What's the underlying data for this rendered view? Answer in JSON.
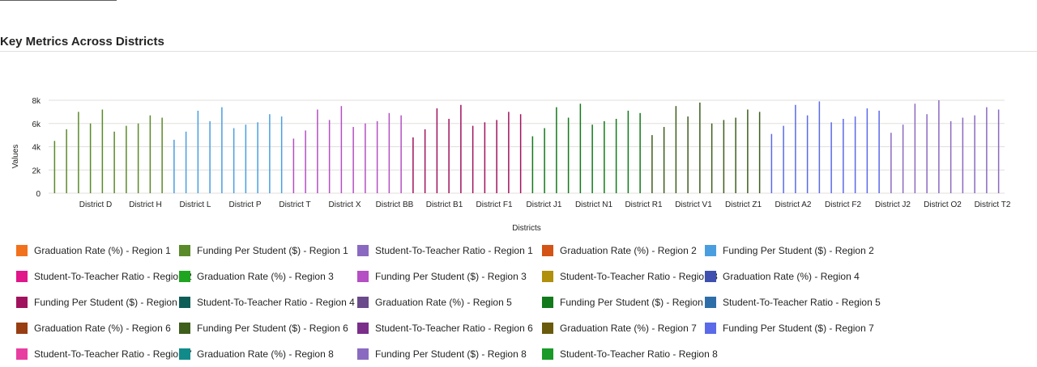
{
  "chart_data": {
    "type": "bar",
    "title": "Key Metrics Across Districts",
    "xlabel": "Districts",
    "ylabel": "Values",
    "ylim": [
      0,
      8000
    ],
    "y_ticks": [
      "0",
      "2k",
      "4k",
      "6k",
      "8k"
    ],
    "grid": true,
    "legend_position": "bottom",
    "x_tick_labels": [
      "District D",
      "District H",
      "District L",
      "District P",
      "District T",
      "District X",
      "District BB",
      "District B1",
      "District F1",
      "District J1",
      "District N1",
      "District R1",
      "District V1",
      "District Z1",
      "District A2",
      "District F2",
      "District J2",
      "District O2",
      "District T2"
    ],
    "bar_values": [
      4500,
      5500,
      7000,
      6000,
      7200,
      5300,
      5800,
      6000,
      6700,
      6500,
      4600,
      5300,
      7100,
      6200,
      7400,
      5600,
      5900,
      6100,
      6800,
      6600,
      4700,
      5400,
      7200,
      6300,
      7500,
      5700,
      6000,
      6200,
      6900,
      6700,
      4800,
      5500,
      7300,
      6400,
      7600,
      5800,
      6100,
      6300,
      7000,
      6800,
      4900,
      5600,
      7400,
      6500,
      7700,
      5900,
      6200,
      6400,
      7100,
      6900,
      5000,
      5700,
      7500,
      6600,
      7800,
      6000,
      6300,
      6500,
      7200,
      7000,
      5100,
      5800,
      7600,
      6700,
      7900,
      6100,
      6400,
      6600,
      7300,
      7100,
      5200,
      5900,
      7700,
      6800,
      8000,
      6200,
      6500,
      6700,
      7400,
      7200
    ],
    "bar_colors": [
      "#5a8a2a",
      "#5a8a2a",
      "#5a8a2a",
      "#5a8a2a",
      "#5a8a2a",
      "#5a8a2a",
      "#5a8a2a",
      "#5a8a2a",
      "#5a8a2a",
      "#5a8a2a",
      "#4a9ee0",
      "#4a9ee0",
      "#4a9ee0",
      "#4a9ee0",
      "#4a9ee0",
      "#4a9ee0",
      "#4a9ee0",
      "#4a9ee0",
      "#4a9ee0",
      "#4a9ee0",
      "#b44fc4",
      "#b44fc4",
      "#b44fc4",
      "#b44fc4",
      "#b44fc4",
      "#b44fc4",
      "#b44fc4",
      "#b44fc4",
      "#b44fc4",
      "#b44fc4",
      "#a0125e",
      "#a0125e",
      "#a0125e",
      "#a0125e",
      "#a0125e",
      "#a0125e",
      "#a0125e",
      "#a0125e",
      "#a0125e",
      "#a0125e",
      "#127a1a",
      "#127a1a",
      "#127a1a",
      "#127a1a",
      "#127a1a",
      "#127a1a",
      "#127a1a",
      "#127a1a",
      "#127a1a",
      "#127a1a",
      "#3e5e1c",
      "#3e5e1c",
      "#3e5e1c",
      "#3e5e1c",
      "#3e5e1c",
      "#3e5e1c",
      "#3e5e1c",
      "#3e5e1c",
      "#3e5e1c",
      "#3e5e1c",
      "#5a6ae8",
      "#5a6ae8",
      "#5a6ae8",
      "#5a6ae8",
      "#5a6ae8",
      "#5a6ae8",
      "#5a6ae8",
      "#5a6ae8",
      "#5a6ae8",
      "#5a6ae8",
      "#8a6ac0",
      "#8a6ac0",
      "#8a6ac0",
      "#8a6ac0",
      "#8a6ac0",
      "#8a6ac0",
      "#8a6ac0",
      "#8a6ac0",
      "#8a6ac0",
      "#8a6ac0"
    ],
    "legend": [
      {
        "label": "Graduation Rate (%) - Region 1",
        "color": "#f2711c"
      },
      {
        "label": "Funding Per Student ($) - Region 1",
        "color": "#5a8a2a"
      },
      {
        "label": "Student-To-Teacher Ratio - Region 1",
        "color": "#8a6ac0"
      },
      {
        "label": "Graduation Rate (%) - Region 2",
        "color": "#d35416"
      },
      {
        "label": "Funding Per Student ($) - Region 2",
        "color": "#4a9ee0"
      },
      {
        "label": "Student-To-Teacher Ratio - Region 2",
        "color": "#e0168a"
      },
      {
        "label": "Graduation Rate (%) - Region 3",
        "color": "#1fa51f"
      },
      {
        "label": "Funding Per Student ($) - Region 3",
        "color": "#b44fc4"
      },
      {
        "label": "Student-To-Teacher Ratio - Region 3",
        "color": "#b0900c"
      },
      {
        "label": "Graduation Rate (%) - Region 4",
        "color": "#3e4fb0"
      },
      {
        "label": "Funding Per Student ($) - Region 4",
        "color": "#a0125e"
      },
      {
        "label": "Student-To-Teacher Ratio - Region 4",
        "color": "#0e5e58"
      },
      {
        "label": "Graduation Rate (%) - Region 5",
        "color": "#6a4a8a"
      },
      {
        "label": "Funding Per Student ($) - Region 5",
        "color": "#127a1a"
      },
      {
        "label": "Student-To-Teacher Ratio - Region 5",
        "color": "#2e6ea8"
      },
      {
        "label": "Graduation Rate (%) - Region 6",
        "color": "#983e12"
      },
      {
        "label": "Funding Per Student ($) - Region 6",
        "color": "#3e5e1c"
      },
      {
        "label": "Student-To-Teacher Ratio - Region 6",
        "color": "#7a2e8a"
      },
      {
        "label": "Graduation Rate (%) - Region 7",
        "color": "#6a5a0c"
      },
      {
        "label": "Funding Per Student ($) - Region 7",
        "color": "#5a6ae8"
      },
      {
        "label": "Student-To-Teacher Ratio - Region 7",
        "color": "#e83ea0"
      },
      {
        "label": "Graduation Rate (%) - Region 8",
        "color": "#118a8a"
      },
      {
        "label": "Funding Per Student ($) - Region 8",
        "color": "#8a6ac0"
      },
      {
        "label": "Student-To-Teacher Ratio - Region 8",
        "color": "#1a9a28"
      }
    ]
  }
}
